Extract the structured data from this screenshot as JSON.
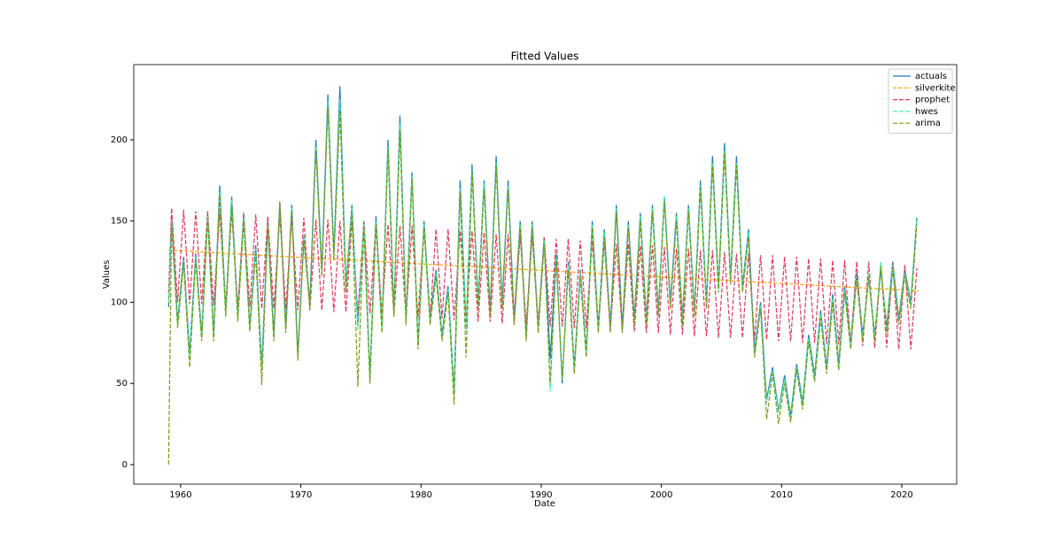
{
  "chart_data": {
    "type": "line",
    "title": "Fitted Values",
    "x_label": "Date",
    "y_label": "Values",
    "xlim": [
      1956.1,
      2024.57
    ],
    "ylim": [
      -12,
      246.3
    ],
    "xticks": [
      1960,
      1970,
      1980,
      1990,
      2000,
      2010,
      2020
    ],
    "yticks": [
      0,
      50,
      100,
      150,
      200
    ],
    "legend": "upper right",
    "x": [
      1959.0,
      1959.25,
      1959.75,
      1960.25,
      1960.75,
      1961.25,
      1961.75,
      1962.25,
      1962.75,
      1963.25,
      1963.75,
      1964.25,
      1964.75,
      1965.25,
      1965.75,
      1966.25,
      1966.75,
      1967.25,
      1967.75,
      1968.25,
      1968.75,
      1969.25,
      1969.75,
      1970.25,
      1970.75,
      1971.25,
      1971.75,
      1972.25,
      1972.75,
      1973.25,
      1973.75,
      1974.25,
      1974.75,
      1975.25,
      1975.75,
      1976.25,
      1976.75,
      1977.25,
      1977.75,
      1978.25,
      1978.75,
      1979.25,
      1979.75,
      1980.25,
      1980.75,
      1981.25,
      1981.75,
      1982.25,
      1982.75,
      1983.25,
      1983.75,
      1984.25,
      1984.75,
      1985.25,
      1985.75,
      1986.25,
      1986.75,
      1987.25,
      1987.75,
      1988.25,
      1988.75,
      1989.25,
      1989.75,
      1990.25,
      1990.75,
      1991.25,
      1991.75,
      1992.25,
      1992.75,
      1993.25,
      1993.75,
      1994.25,
      1994.75,
      1995.25,
      1995.75,
      1996.25,
      1996.75,
      1997.25,
      1997.75,
      1998.25,
      1998.75,
      1999.25,
      1999.75,
      2000.25,
      2000.75,
      2001.25,
      2001.75,
      2002.25,
      2002.75,
      2003.25,
      2003.75,
      2004.25,
      2004.75,
      2005.25,
      2005.75,
      2006.25,
      2006.75,
      2007.25,
      2007.75,
      2008.25,
      2008.75,
      2009.25,
      2009.75,
      2010.25,
      2010.75,
      2011.25,
      2011.75,
      2012.25,
      2012.75,
      2013.25,
      2013.75,
      2014.25,
      2014.75,
      2015.25,
      2015.75,
      2016.25,
      2016.75,
      2017.25,
      2017.75,
      2018.25,
      2018.75,
      2019.25,
      2019.75,
      2020.25,
      2020.75,
      2021.25
    ],
    "series": [
      {
        "name": "actuals",
        "color": "#1f77b4",
        "dash": "none",
        "values": [
          97,
          152,
          88,
          128,
          68,
          130,
          80,
          155,
          80,
          172,
          95,
          165,
          92,
          155,
          85,
          135,
          60,
          150,
          80,
          162,
          85,
          160,
          68,
          140,
          100,
          200,
          120,
          228,
          130,
          233,
          110,
          160,
          85,
          150,
          55,
          153,
          85,
          200,
          95,
          215,
          90,
          180,
          75,
          150,
          90,
          120,
          80,
          110,
          45,
          175,
          85,
          185,
          100,
          175,
          95,
          190,
          100,
          175,
          90,
          150,
          80,
          150,
          85,
          140,
          65,
          130,
          50,
          125,
          60,
          120,
          70,
          150,
          85,
          145,
          85,
          160,
          85,
          150,
          90,
          155,
          90,
          160,
          95,
          165,
          100,
          155,
          90,
          160,
          95,
          175,
          100,
          190,
          110,
          198,
          115,
          190,
          110,
          145,
          70,
          100,
          40,
          60,
          33,
          55,
          30,
          62,
          38,
          80,
          55,
          95,
          60,
          105,
          62,
          110,
          75,
          118,
          80,
          115,
          80,
          120,
          85,
          125,
          90,
          120,
          100,
          152
        ]
      },
      {
        "name": "silverkite",
        "color": "#ffa500",
        "dash": "4 2",
        "x": [
          1959.0,
          2021.4
        ],
        "values": [
          132,
          107
        ]
      },
      {
        "name": "prophet",
        "color": "#dc3a5f",
        "dash": "5 2",
        "values": [
          105,
          158,
          100,
          157,
          99,
          156,
          99,
          156,
          98,
          155,
          98,
          155,
          97,
          154,
          97,
          154,
          96,
          153,
          96,
          153,
          96,
          152,
          95,
          152,
          95,
          151,
          95,
          151,
          94,
          150,
          94,
          150,
          93,
          149,
          93,
          148,
          92,
          148,
          92,
          147,
          91,
          147,
          91,
          146,
          90,
          145,
          90,
          145,
          89,
          144,
          89,
          144,
          88,
          143,
          88,
          142,
          87,
          142,
          87,
          141,
          86,
          141,
          86,
          140,
          85,
          139,
          85,
          139,
          84,
          138,
          84,
          138,
          83,
          137,
          83,
          136,
          82,
          136,
          82,
          135,
          81,
          135,
          81,
          134,
          80,
          133,
          80,
          133,
          79,
          132,
          79,
          132,
          78,
          131,
          78,
          130,
          78,
          130,
          77,
          129,
          77,
          129,
          76,
          128,
          76,
          128,
          75,
          127,
          75,
          127,
          74,
          126,
          74,
          126,
          73,
          125,
          73,
          125,
          72,
          124,
          72,
          124,
          71,
          123,
          71,
          121
        ]
      },
      {
        "name": "hwes",
        "color": "#40f0a0",
        "dash": "5 2",
        "values": [
          100,
          150,
          86,
          126,
          66,
          128,
          78,
          153,
          78,
          168,
          93,
          163,
          90,
          152,
          83,
          133,
          58,
          148,
          78,
          160,
          83,
          158,
          66,
          142,
          98,
          196,
          118,
          224,
          128,
          225,
          108,
          158,
          83,
          148,
          52,
          150,
          83,
          196,
          93,
          210,
          88,
          178,
          73,
          148,
          88,
          118,
          78,
          108,
          43,
          170,
          83,
          182,
          98,
          173,
          93,
          186,
          98,
          172,
          88,
          148,
          78,
          148,
          83,
          138,
          45,
          128,
          52,
          123,
          58,
          118,
          68,
          148,
          83,
          143,
          83,
          158,
          83,
          148,
          88,
          153,
          88,
          158,
          93,
          165,
          98,
          153,
          88,
          158,
          93,
          172,
          98,
          186,
          108,
          194,
          113,
          186,
          108,
          143,
          68,
          98,
          38,
          58,
          32,
          53,
          28,
          60,
          36,
          78,
          53,
          93,
          58,
          103,
          60,
          108,
          73,
          116,
          78,
          118,
          78,
          125,
          83,
          123,
          88,
          118,
          98,
          150
        ]
      },
      {
        "name": "arima",
        "color": "#7a9a10",
        "dash": "5 2",
        "values": [
          0,
          148,
          84,
          124,
          60,
          126,
          76,
          152,
          76,
          166,
          91,
          160,
          88,
          150,
          82,
          130,
          49,
          146,
          76,
          162,
          81,
          156,
          64,
          138,
          96,
          194,
          116,
          220,
          126,
          218,
          106,
          156,
          48,
          146,
          50,
          148,
          81,
          194,
          91,
          206,
          86,
          176,
          71,
          146,
          86,
          116,
          76,
          106,
          37,
          168,
          66,
          180,
          96,
          170,
          91,
          184,
          96,
          170,
          86,
          146,
          76,
          146,
          81,
          136,
          50,
          126,
          52,
          120,
          56,
          116,
          66,
          146,
          81,
          140,
          81,
          156,
          81,
          146,
          86,
          150,
          86,
          156,
          91,
          162,
          96,
          150,
          86,
          156,
          91,
          170,
          96,
          184,
          106,
          192,
          111,
          184,
          106,
          140,
          66,
          96,
          28,
          56,
          25,
          50,
          26,
          58,
          34,
          76,
          51,
          90,
          56,
          100,
          58,
          106,
          71,
          114,
          76,
          116,
          76,
          122,
          81,
          120,
          86,
          116,
          96,
          148
        ]
      }
    ]
  }
}
